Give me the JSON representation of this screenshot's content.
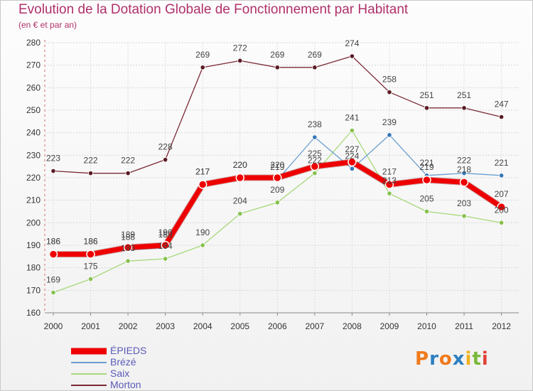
{
  "header": {
    "title": "Evolution de la Dotation Globale de Fonctionnement par Habitant",
    "subtitle": "(en € et par an)"
  },
  "brand": {
    "letters": [
      "P",
      "r",
      "o",
      "x",
      "i",
      "t",
      "i"
    ],
    "colors": [
      "#f07a1c",
      "#2d7fc1",
      "#f07a1c",
      "#2d7fc1",
      "#f2b21e",
      "#7ab838",
      "#e0423a"
    ]
  },
  "chart_data": {
    "type": "line",
    "title": "Evolution de la Dotation Globale de Fonctionnement par Habitant",
    "subtitle": "(en € et par an)",
    "xlabel": "",
    "ylabel": "",
    "ylim": [
      160,
      280
    ],
    "yticks": [
      160,
      170,
      180,
      190,
      200,
      210,
      220,
      230,
      240,
      250,
      260,
      270,
      280
    ],
    "grid": true,
    "legend_position": "bottom-left",
    "x": [
      "2000",
      "2001",
      "2002",
      "2003",
      "2004",
      "2005",
      "2006",
      "2007",
      "2008",
      "2009",
      "2010",
      "2011",
      "2012"
    ],
    "series": [
      {
        "name": "Morton",
        "color": "#7a2a35",
        "marker": "#5a1a22",
        "width": 1.3,
        "radius": 3.2,
        "values": [
          223,
          222,
          222,
          228,
          269,
          272,
          269,
          269,
          274,
          258,
          251,
          251,
          247
        ]
      },
      {
        "name": "Saix",
        "color": "#a6d87a",
        "marker": "#86c04c",
        "width": 1.3,
        "radius": 3.2,
        "values": [
          169,
          175,
          183,
          184,
          190,
          204,
          209,
          222,
          241,
          213,
          205,
          203,
          200
        ]
      },
      {
        "name": "Brézé",
        "color": "#6b9fd0",
        "marker": "#3576b8",
        "width": 1.3,
        "radius": 3.2,
        "values": [
          186,
          186,
          188,
          189,
          217,
          220,
          219,
          238,
          224,
          239,
          221,
          222,
          221
        ]
      },
      {
        "name": "ÉPIEDS",
        "color": "#ee0000",
        "marker": "#ee0000",
        "width": 7,
        "radius": 5.5,
        "values": [
          186,
          186,
          189,
          190,
          217,
          220,
          220,
          225,
          227,
          217,
          219,
          218,
          207
        ]
      }
    ],
    "legend_order": [
      "ÉPIEDS",
      "Brézé",
      "Saix",
      "Morton"
    ]
  }
}
